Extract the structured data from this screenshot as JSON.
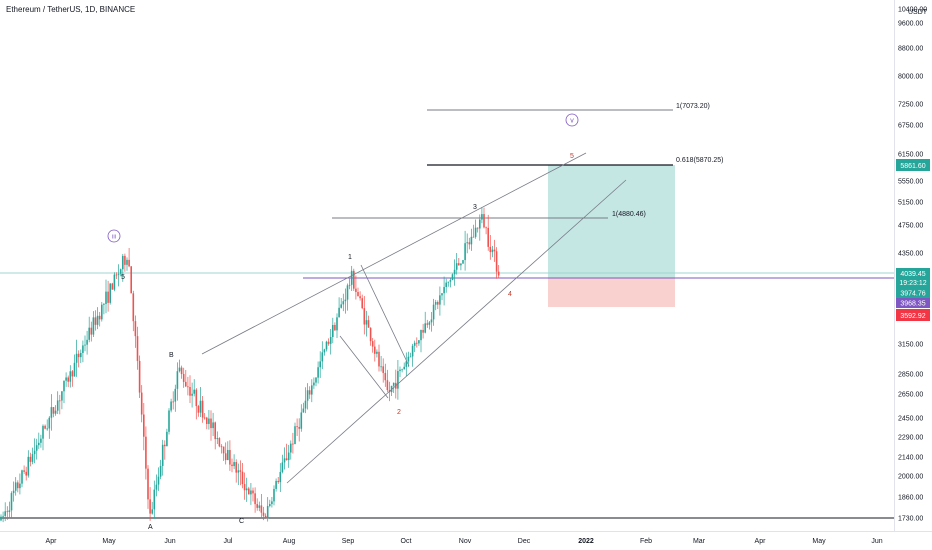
{
  "symbol": {
    "title": "Ethereum / TetherUS, 1D, BINANCE"
  },
  "colors": {
    "up": "#26a69a",
    "down": "#ef5350",
    "purple": "#7e57c2",
    "target_zone": "#b2dfdb",
    "stop_zone": "#f8c9c6",
    "current_price_line": "#9fd5d1",
    "target_tag": "#26a69a",
    "last_price_tag": "#26a69a",
    "stop_tag": "#f23645",
    "purple_tag": "#7e57c2"
  },
  "chart_data": {
    "type": "candlestick",
    "currency": "USDT",
    "y_axis_scale": "log",
    "ylim": [
      1700,
      10400
    ],
    "y_ticks": [
      "10400.00",
      "9600.00",
      "8800.00",
      "8000.00",
      "7250.00",
      "6750.00",
      "6150.00",
      "5550.00",
      "5150.00",
      "4750.00",
      "4350.00",
      "3150.00",
      "2850.00",
      "2650.00",
      "2450.00",
      "2290.00",
      "2140.00",
      "2000.00",
      "1860.00",
      "1730.00"
    ],
    "x_ticks": [
      "Apr",
      "May",
      "Jun",
      "Jul",
      "Aug",
      "Sep",
      "Oct",
      "Nov",
      "Dec",
      "2022",
      "Feb",
      "Mar",
      "Apr",
      "May",
      "Jun"
    ],
    "price_tags": {
      "target": "5861.60",
      "last_price": "4039.45",
      "countdown": "19:23:12",
      "entry": "3974.76",
      "purple_level": "3968.35",
      "stop": "3592.92"
    },
    "fib_levels": [
      {
        "label": "1(7073.20)",
        "value": 7073.2
      },
      {
        "label": "0.618(5870.25)",
        "value": 5870.25
      },
      {
        "label": "1(4880.46)",
        "value": 4880.46
      }
    ],
    "wave_labels": [
      "5",
      "B",
      "A",
      "C",
      "1",
      "2",
      "3",
      "4",
      "5",
      "iii",
      "v"
    ],
    "horizontal_support": 1730,
    "key_price_points": [
      {
        "date": "Mar 2021",
        "price": 1700
      },
      {
        "date": "May 2021",
        "price": 4350
      },
      {
        "date": "May 2021",
        "price": 1730
      },
      {
        "date": "Jun 2021",
        "price": 2900
      },
      {
        "date": "Jul 2021",
        "price": 1730
      },
      {
        "date": "Sep 2021",
        "price": 4000
      },
      {
        "date": "Sep 2021",
        "price": 2650
      },
      {
        "date": "Nov 2021",
        "price": 4880
      },
      {
        "date": "Nov 2021",
        "price": 4039.45
      }
    ]
  }
}
